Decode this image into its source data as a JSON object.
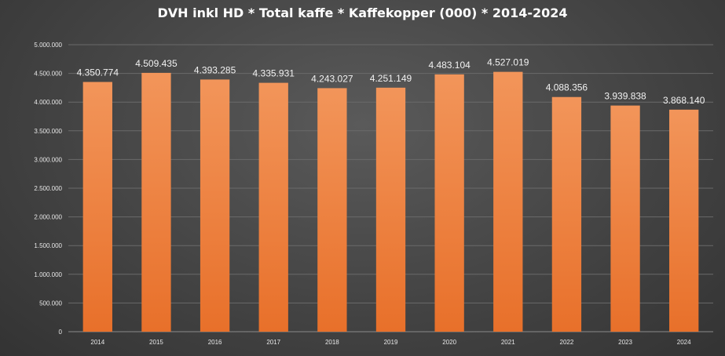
{
  "chart_data": {
    "type": "bar",
    "title": "DVH inkl HD * Total kaffe * Kaffekopper (000) * 2014-2024",
    "categories": [
      "2014",
      "2015",
      "2016",
      "2017",
      "2018",
      "2019",
      "2020",
      "2021",
      "2022",
      "2023",
      "2024"
    ],
    "values": [
      4350774,
      4509435,
      4393285,
      4335931,
      4243027,
      4251149,
      4483104,
      4527019,
      4088356,
      3939838,
      3868140
    ],
    "value_labels": [
      "4.350.774",
      "4.509.435",
      "4.393.285",
      "4.335.931",
      "4.243.027",
      "4.251.149",
      "4.483.104",
      "4.527.019",
      "4.088.356",
      "3.939.838",
      "3.868.140"
    ],
    "y_ticks": [
      0,
      500000,
      1000000,
      1500000,
      2000000,
      2500000,
      3000000,
      3500000,
      4000000,
      4500000,
      5000000
    ],
    "y_tick_labels": [
      "0",
      "500.000",
      "1.000.000",
      "1.500.000",
      "2.000.000",
      "2.500.000",
      "3.000.000",
      "3.500.000",
      "4.000.000",
      "4.500.000",
      "5.000.000"
    ],
    "ylim": [
      0,
      5000000
    ],
    "grid": true,
    "legend": "none",
    "bar_color_top": "#f2955a",
    "bar_color_bottom": "#e8702a"
  }
}
